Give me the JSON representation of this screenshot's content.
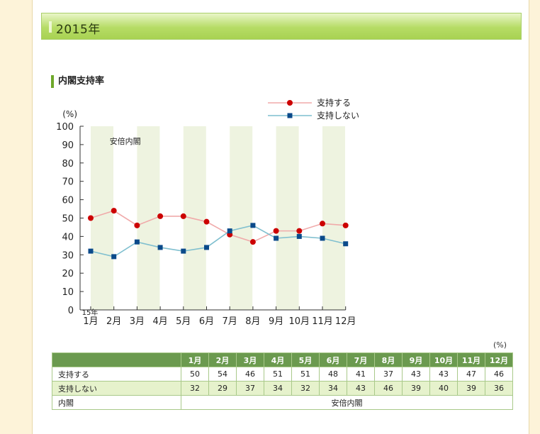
{
  "header": {
    "title": "2015年"
  },
  "section": {
    "title": "内閣支持率"
  },
  "legend": [
    {
      "label": "支持する",
      "color": "#cc0000",
      "line_color": "#f0aaaa",
      "marker": "circle"
    },
    {
      "label": "支持しない",
      "color": "#0b4a8a",
      "line_color": "#7fbfcf",
      "marker": "square"
    }
  ],
  "chart_data": {
    "type": "line",
    "ylabel": "(%)",
    "ylim": [
      0,
      100
    ],
    "yticks": [
      "0",
      "10",
      "20",
      "30",
      "40",
      "50",
      "60",
      "70",
      "80",
      "90",
      "100"
    ],
    "year_label": "15年",
    "categories": [
      "1月",
      "2月",
      "3月",
      "4月",
      "5月",
      "6月",
      "7月",
      "8月",
      "9月",
      "10月",
      "11月",
      "12月"
    ],
    "annotation": "安倍内閣",
    "series": [
      {
        "name": "支持する",
        "values": [
          50,
          54,
          46,
          51,
          51,
          48,
          41,
          37,
          43,
          43,
          47,
          46
        ]
      },
      {
        "name": "支持しない",
        "values": [
          32,
          29,
          37,
          34,
          32,
          34,
          43,
          46,
          39,
          40,
          39,
          36
        ]
      }
    ],
    "grid": false,
    "band_color": "#eef3e0"
  },
  "table": {
    "unit": "(%)",
    "months": [
      "1月",
      "2月",
      "3月",
      "4月",
      "5月",
      "6月",
      "7月",
      "8月",
      "9月",
      "10月",
      "11月",
      "12月"
    ],
    "rows": [
      {
        "label": "支持する",
        "values": [
          "50",
          "54",
          "46",
          "51",
          "51",
          "48",
          "41",
          "37",
          "43",
          "43",
          "47",
          "46"
        ]
      },
      {
        "label": "支持しない",
        "values": [
          "32",
          "29",
          "37",
          "34",
          "32",
          "34",
          "43",
          "46",
          "39",
          "40",
          "39",
          "36"
        ]
      }
    ],
    "cabinet_label": "内閣",
    "cabinet_value": "安倍内閣"
  }
}
